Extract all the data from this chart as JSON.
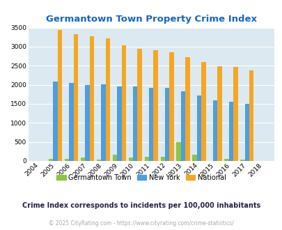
{
  "title": "Germantown Town Property Crime Index",
  "years": [
    "2004",
    "2005",
    "2006",
    "2007",
    "2008",
    "2009",
    "2010",
    "2011",
    "2012",
    "2013",
    "2014",
    "2015",
    "2016",
    "2017",
    "2018"
  ],
  "germantown": [
    0,
    50,
    50,
    100,
    40,
    160,
    100,
    110,
    110,
    490,
    160,
    0,
    50,
    40,
    0
  ],
  "new_york": [
    0,
    2090,
    2050,
    2000,
    2010,
    1950,
    1950,
    1920,
    1920,
    1830,
    1710,
    1590,
    1550,
    1500,
    0
  ],
  "national": [
    0,
    3430,
    3330,
    3270,
    3210,
    3040,
    2950,
    2900,
    2860,
    2720,
    2590,
    2490,
    2470,
    2370,
    0
  ],
  "germantown_color": "#8dc63f",
  "new_york_color": "#4d9de0",
  "national_color": "#f5a623",
  "bg_color": "#dce9f0",
  "title_color": "#1565c0",
  "ylim": [
    0,
    3500
  ],
  "yticks": [
    0,
    500,
    1000,
    1500,
    2000,
    2500,
    3000,
    3500
  ],
  "subtitle": "Crime Index corresponds to incidents per 100,000 inhabitants",
  "footer": "© 2025 CityRating.com - https://www.cityrating.com/crime-statistics/",
  "legend_labels": [
    "Germantown Town",
    "New York",
    "National"
  ],
  "bar_width": 0.28
}
